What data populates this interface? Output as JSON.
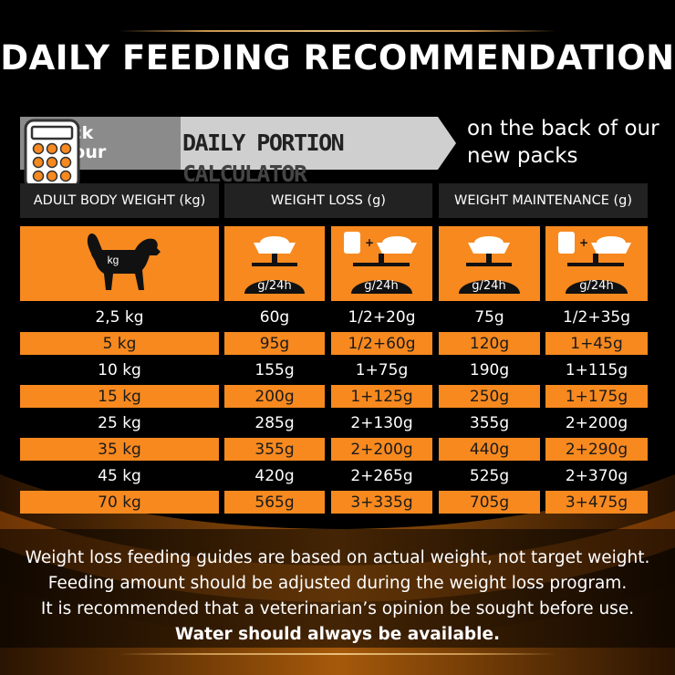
{
  "title": "DAILY FEEDING RECOMMENDATION",
  "banner": {
    "check_text": "Check out our",
    "calc_part1": "DAILY PORTION",
    "calc_part2": "CALCULATOR",
    "side_note": "on the back of our new packs",
    "calculator_icon": "calculator-icon"
  },
  "colors": {
    "orange": "#f7891f",
    "header_bg": "#222222",
    "banner_bg": "#cfcfcf"
  },
  "table": {
    "headers": [
      "ADULT BODY WEIGHT (kg)",
      "WEIGHT LOSS (g)",
      "WEIGHT MAINTENANCE (g)"
    ],
    "icons": {
      "dog_label": "kg",
      "unit": "g/24h",
      "plus": "+"
    },
    "rows": [
      [
        "2,5 kg",
        "60g",
        "1/2+20g",
        "75g",
        "1/2+35g"
      ],
      [
        "5 kg",
        "95g",
        "1/2+60g",
        "120g",
        "1+45g"
      ],
      [
        "10 kg",
        "155g",
        "1+75g",
        "190g",
        "1+115g"
      ],
      [
        "15 kg",
        "200g",
        "1+125g",
        "250g",
        "1+175g"
      ],
      [
        "25 kg",
        "285g",
        "2+130g",
        "355g",
        "2+200g"
      ],
      [
        "35 kg",
        "355g",
        "2+200g",
        "440g",
        "2+290g"
      ],
      [
        "45 kg",
        "420g",
        "2+265g",
        "525g",
        "2+370g"
      ],
      [
        "70 kg",
        "565g",
        "3+335g",
        "705g",
        "3+475g"
      ]
    ]
  },
  "footer": {
    "line1": "Weight loss feeding guides are based on actual weight, not target weight.",
    "line2": "Feeding amount should be adjusted during the weight loss program.",
    "line3": "It is recommended that a veterinarian’s opinion be sought before use.",
    "line4": "Water should always be available."
  }
}
